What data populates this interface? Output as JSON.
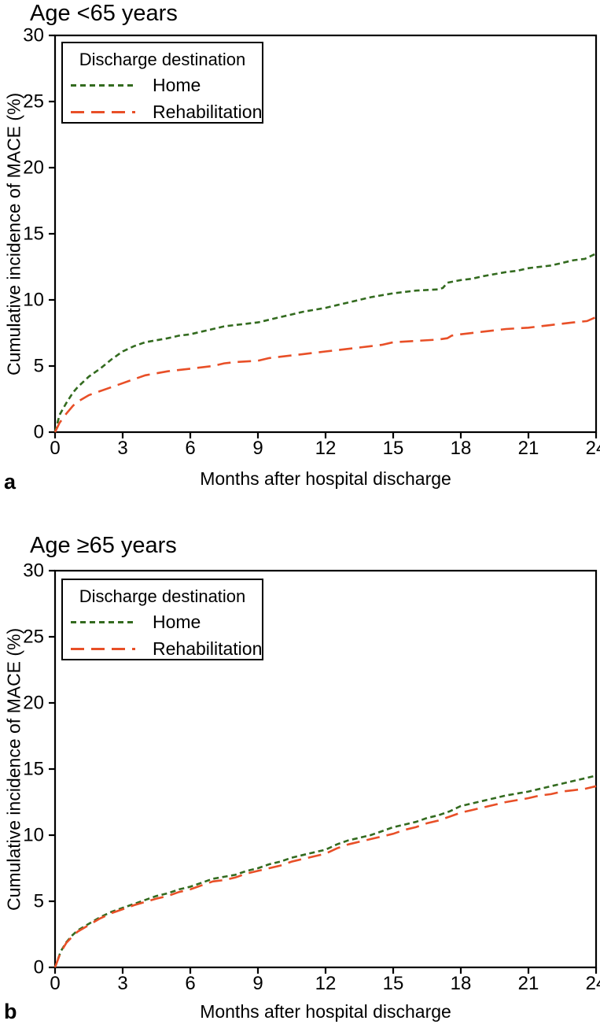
{
  "panels": [
    {
      "letter": "a",
      "title": "Age <65 years",
      "xlabel": "Months after hospital discharge",
      "ylabel": "Cumulative incidence of MACE (%)",
      "legend": {
        "title": "Discharge destination",
        "items": [
          {
            "label": "Home",
            "color": "#336b1f",
            "dash": "short"
          },
          {
            "label": "Rehabilitation",
            "color": "#e84f27",
            "dash": "long"
          }
        ]
      }
    },
    {
      "letter": "b",
      "title": "Age ≥65 years",
      "xlabel": "Months after hospital discharge",
      "ylabel": "Cumulative incidence of MACE (%)",
      "legend": {
        "title": "Discharge destination",
        "items": [
          {
            "label": "Home",
            "color": "#336b1f",
            "dash": "short"
          },
          {
            "label": "Rehabilitation",
            "color": "#e84f27",
            "dash": "long"
          }
        ]
      }
    }
  ],
  "chart_data": [
    {
      "type": "line",
      "title": "Age <65 years",
      "xlabel": "Months after hospital discharge",
      "ylabel": "Cumulative incidence of MACE (%)",
      "xlim": [
        0,
        24
      ],
      "ylim": [
        0,
        30
      ],
      "xticks": [
        0,
        3,
        6,
        9,
        12,
        15,
        18,
        21,
        24
      ],
      "yticks": [
        0,
        5,
        10,
        15,
        20,
        25,
        30
      ],
      "grid": false,
      "legend_position": "top-left",
      "series": [
        {
          "name": "Home",
          "color": "#336b1f",
          "dash": "short",
          "x": [
            0,
            0.2,
            0.5,
            0.8,
            1,
            1.5,
            2,
            2.5,
            3,
            3.5,
            4,
            5,
            5.5,
            6,
            6.5,
            7,
            7.5,
            8,
            9,
            10,
            10.5,
            11,
            12,
            12.5,
            13,
            13.5,
            14,
            15,
            15.5,
            16,
            17,
            17.2,
            17.4,
            18,
            18.5,
            19,
            20,
            20.5,
            21,
            22,
            22.5,
            23,
            23.5,
            24
          ],
          "y": [
            0,
            1.3,
            2.2,
            3.0,
            3.4,
            4.2,
            4.8,
            5.5,
            6.1,
            6.5,
            6.8,
            7.1,
            7.3,
            7.4,
            7.6,
            7.8,
            8.0,
            8.1,
            8.3,
            8.7,
            8.9,
            9.1,
            9.4,
            9.6,
            9.8,
            10.0,
            10.2,
            10.5,
            10.6,
            10.7,
            10.8,
            10.9,
            11.3,
            11.5,
            11.6,
            11.8,
            12.1,
            12.2,
            12.4,
            12.6,
            12.8,
            13.0,
            13.1,
            13.5
          ]
        },
        {
          "name": "Rehabilitation",
          "color": "#e84f27",
          "dash": "long",
          "x": [
            0,
            0.2,
            0.5,
            0.8,
            1,
            1.5,
            2,
            2.5,
            3,
            3.5,
            4,
            5,
            6,
            6.5,
            7,
            7.5,
            8,
            9,
            9.5,
            10,
            11,
            12,
            13,
            14,
            14.5,
            15,
            16,
            17,
            17.4,
            17.6,
            18,
            19,
            20,
            21,
            22,
            23,
            23.6,
            24
          ],
          "y": [
            0,
            0.7,
            1.4,
            2.0,
            2.3,
            2.8,
            3.1,
            3.4,
            3.7,
            4.0,
            4.3,
            4.6,
            4.8,
            4.9,
            5.0,
            5.2,
            5.3,
            5.4,
            5.6,
            5.7,
            5.9,
            6.1,
            6.3,
            6.5,
            6.6,
            6.8,
            6.9,
            7.0,
            7.1,
            7.3,
            7.4,
            7.6,
            7.8,
            7.9,
            8.1,
            8.3,
            8.4,
            8.7
          ]
        }
      ]
    },
    {
      "type": "line",
      "title": "Age ≥65 years",
      "xlabel": "Months after hospital discharge",
      "ylabel": "Cumulative incidence of MACE (%)",
      "xlim": [
        0,
        24
      ],
      "ylim": [
        0,
        30
      ],
      "xticks": [
        0,
        3,
        6,
        9,
        12,
        15,
        18,
        21,
        24
      ],
      "yticks": [
        0,
        5,
        10,
        15,
        20,
        25,
        30
      ],
      "grid": false,
      "legend_position": "top-left",
      "series": [
        {
          "name": "Home",
          "color": "#336b1f",
          "dash": "short",
          "x": [
            0,
            0.25,
            0.5,
            0.75,
            1,
            1.5,
            2,
            2.5,
            3,
            3.5,
            4,
            4.5,
            5,
            5.5,
            6,
            6.5,
            7,
            7.5,
            8,
            8.5,
            9,
            9.5,
            10,
            10.5,
            11,
            11.5,
            12,
            12.5,
            13,
            13.5,
            14,
            14.5,
            15,
            15.5,
            16,
            16.5,
            17,
            17.5,
            18,
            18.5,
            19,
            19.5,
            20,
            21,
            21.5,
            22,
            22.5,
            23,
            23.5,
            24
          ],
          "y": [
            0,
            1.2,
            1.9,
            2.4,
            2.8,
            3.3,
            3.8,
            4.2,
            4.5,
            4.8,
            5.1,
            5.4,
            5.6,
            5.9,
            6.1,
            6.4,
            6.7,
            6.85,
            7.0,
            7.3,
            7.5,
            7.8,
            8.0,
            8.3,
            8.5,
            8.7,
            8.9,
            9.3,
            9.6,
            9.8,
            10.0,
            10.3,
            10.6,
            10.8,
            11.0,
            11.3,
            11.5,
            11.8,
            12.2,
            12.4,
            12.6,
            12.8,
            13.0,
            13.3,
            13.5,
            13.7,
            13.9,
            14.1,
            14.3,
            14.5
          ]
        },
        {
          "name": "Rehabilitation",
          "color": "#e84f27",
          "dash": "long",
          "x": [
            0,
            0.25,
            0.5,
            0.75,
            1,
            1.5,
            2,
            2.5,
            3,
            3.5,
            4,
            4.5,
            5,
            5.5,
            6,
            6.5,
            7,
            7.5,
            8,
            8.5,
            9,
            9.5,
            10,
            10.5,
            11,
            11.5,
            12,
            12.5,
            13,
            13.5,
            14,
            14.5,
            15,
            15.5,
            16,
            16.5,
            17,
            17.5,
            18,
            18.5,
            19,
            19.5,
            20,
            21,
            21.5,
            22,
            22.5,
            23,
            23.5,
            24
          ],
          "y": [
            0,
            1.15,
            1.85,
            2.3,
            2.7,
            3.2,
            3.7,
            4.1,
            4.4,
            4.7,
            4.95,
            5.2,
            5.4,
            5.7,
            5.9,
            6.2,
            6.5,
            6.6,
            6.8,
            7.1,
            7.3,
            7.5,
            7.7,
            8.0,
            8.2,
            8.4,
            8.6,
            9.0,
            9.3,
            9.5,
            9.7,
            9.9,
            10.1,
            10.4,
            10.6,
            10.9,
            11.1,
            11.4,
            11.7,
            11.9,
            12.1,
            12.3,
            12.5,
            12.8,
            13.0,
            13.1,
            13.3,
            13.4,
            13.5,
            13.7
          ]
        }
      ]
    }
  ]
}
